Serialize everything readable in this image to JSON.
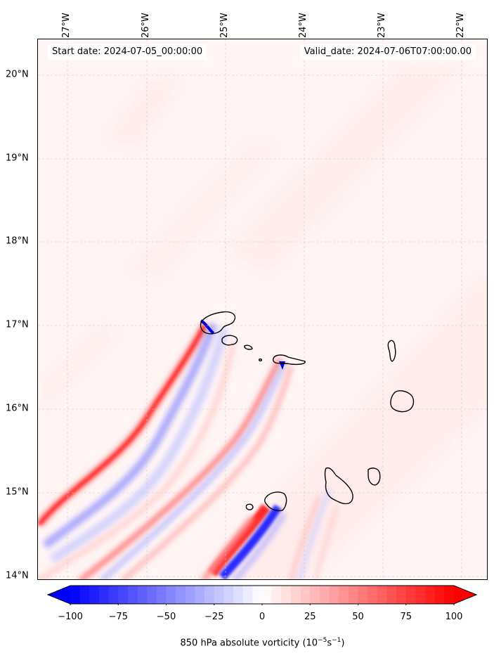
{
  "map": {
    "start_date": "Start date: 2024-07-05_00:00:00",
    "valid_date": "Valid_date: 2024-07-06T07:00:00.00",
    "lon_labels": [
      "27°W",
      "26°W",
      "25°W",
      "24°W",
      "23°W",
      "22°W"
    ],
    "lat_labels": [
      "20°N",
      "19°N",
      "18°N",
      "17°N",
      "16°N",
      "15°N",
      "14°N"
    ],
    "lon_values": [
      -27,
      -26,
      -25,
      -24,
      -23,
      -22
    ],
    "lat_values": [
      20,
      19,
      18,
      17,
      16,
      15,
      14
    ],
    "extent": {
      "lon_min": -27.35,
      "lon_max": -21.7,
      "lat_min": 13.95,
      "lat_max": 20.45
    },
    "islands": [
      "Santo Antão",
      "São Vicente",
      "Santa Luzia",
      "São Nicolau",
      "Sal",
      "Boa Vista",
      "Santiago",
      "Maio",
      "Fogo",
      "Brava"
    ],
    "grid": true
  },
  "colorbar": {
    "label": "850 hPa absolute vorticity (10$^{-5}$s$^{-1}$)",
    "label_main": "850 hPa absolute vorticity (10",
    "label_exp1": "−5",
    "label_mid": "s",
    "label_exp2": "−1",
    "label_end": ")",
    "ticks": [
      "−100",
      "−75",
      "−50",
      "−25",
      "0",
      "25",
      "50",
      "75",
      "100"
    ],
    "tick_values": [
      -100,
      -75,
      -50,
      -25,
      0,
      25,
      50,
      75,
      100
    ],
    "range": [
      -100,
      100
    ],
    "colormap": "bwr",
    "extend": "both",
    "colors": {
      "low": "#0000ff",
      "mid": "#ffffff",
      "high": "#ff0000"
    }
  }
}
